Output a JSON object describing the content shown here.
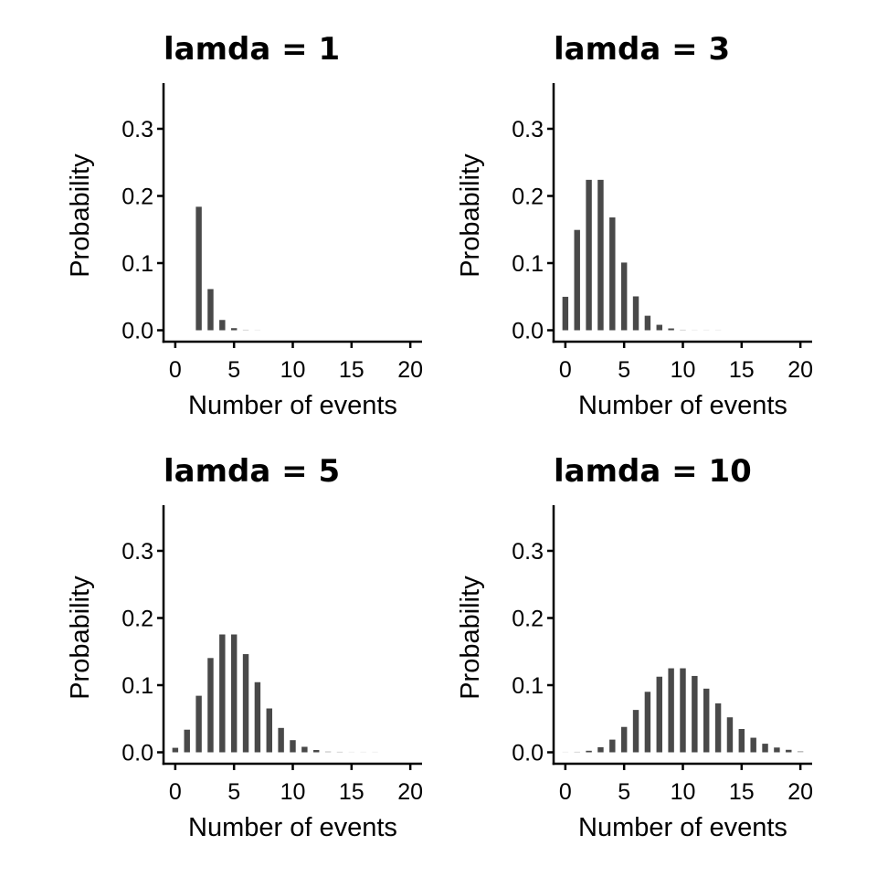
{
  "chart_data": [
    {
      "type": "bar",
      "title": "lamda = 1",
      "xlabel": "Number of events",
      "ylabel": "Probability",
      "xlim": [
        -1,
        21
      ],
      "ylim": [
        -0.017,
        0.368
      ],
      "xticks": [
        0,
        5,
        10,
        15,
        20
      ],
      "xtick_labels": [
        "0",
        "5",
        "10",
        "15",
        "20"
      ],
      "yticks": [
        0.0,
        0.1,
        0.2,
        0.3
      ],
      "ytick_labels": [
        "0.0",
        "0.1",
        "0.2",
        "0.3"
      ],
      "bar_color": "#494949",
      "x": [
        2,
        3,
        4,
        5,
        6,
        7
      ],
      "values": [
        0.1839,
        0.0613,
        0.0153,
        0.0031,
        0.0005,
        0.0001
      ]
    },
    {
      "type": "bar",
      "title": "lamda = 3",
      "xlabel": "Number of events",
      "ylabel": "Probability",
      "xlim": [
        -1,
        21
      ],
      "ylim": [
        -0.017,
        0.368
      ],
      "xticks": [
        0,
        5,
        10,
        15,
        20
      ],
      "xtick_labels": [
        "0",
        "5",
        "10",
        "15",
        "20"
      ],
      "yticks": [
        0.0,
        0.1,
        0.2,
        0.3
      ],
      "ytick_labels": [
        "0.0",
        "0.1",
        "0.2",
        "0.3"
      ],
      "bar_color": "#494949",
      "x": [
        0,
        1,
        2,
        3,
        4,
        5,
        6,
        7,
        8,
        9,
        10,
        11,
        12,
        13
      ],
      "values": [
        0.0498,
        0.1494,
        0.224,
        0.224,
        0.168,
        0.1008,
        0.0504,
        0.0216,
        0.0081,
        0.0027,
        0.0008,
        0.0002,
        0.0001,
        0.0
      ]
    },
    {
      "type": "bar",
      "title": "lamda = 5",
      "xlabel": "Number of events",
      "ylabel": "Probability",
      "xlim": [
        -1,
        21
      ],
      "ylim": [
        -0.017,
        0.368
      ],
      "xticks": [
        0,
        5,
        10,
        15,
        20
      ],
      "xtick_labels": [
        "0",
        "5",
        "10",
        "15",
        "20"
      ],
      "yticks": [
        0.0,
        0.1,
        0.2,
        0.3
      ],
      "ytick_labels": [
        "0.0",
        "0.1",
        "0.2",
        "0.3"
      ],
      "bar_color": "#494949",
      "x": [
        0,
        1,
        2,
        3,
        4,
        5,
        6,
        7,
        8,
        9,
        10,
        11,
        12,
        13,
        14,
        15,
        16,
        17
      ],
      "values": [
        0.0067,
        0.0337,
        0.0842,
        0.1404,
        0.1755,
        0.1755,
        0.1462,
        0.1044,
        0.0653,
        0.0363,
        0.0181,
        0.0082,
        0.0034,
        0.0013,
        0.0005,
        0.0002,
        0.0,
        0.0
      ]
    },
    {
      "type": "bar",
      "title": "lamda = 10",
      "xlabel": "Number of events",
      "ylabel": "Probability",
      "xlim": [
        -1,
        21
      ],
      "ylim": [
        -0.017,
        0.368
      ],
      "xticks": [
        0,
        5,
        10,
        15,
        20
      ],
      "xtick_labels": [
        "0",
        "5",
        "10",
        "15",
        "20"
      ],
      "yticks": [
        0.0,
        0.1,
        0.2,
        0.3
      ],
      "ytick_labels": [
        "0.0",
        "0.1",
        "0.2",
        "0.3"
      ],
      "bar_color": "#494949",
      "x": [
        0,
        1,
        2,
        3,
        4,
        5,
        6,
        7,
        8,
        9,
        10,
        11,
        12,
        13,
        14,
        15,
        16,
        17,
        18,
        19,
        20
      ],
      "values": [
        0.0,
        0.0005,
        0.0023,
        0.0076,
        0.0189,
        0.0378,
        0.0631,
        0.0901,
        0.1126,
        0.1251,
        0.1251,
        0.1137,
        0.0948,
        0.0729,
        0.0521,
        0.0347,
        0.0217,
        0.0128,
        0.0071,
        0.0037,
        0.0019
      ]
    }
  ]
}
